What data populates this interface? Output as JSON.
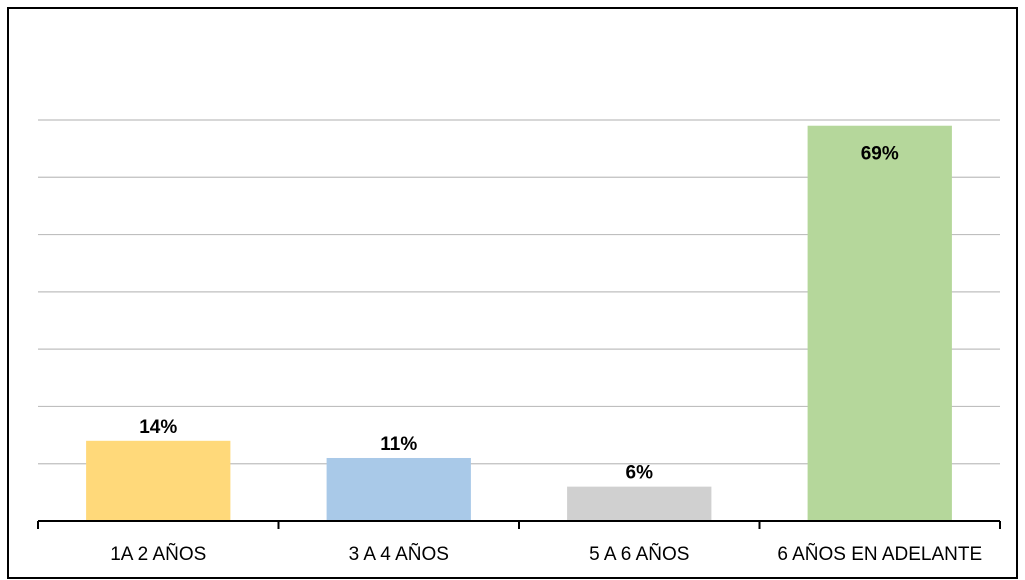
{
  "chart_data": {
    "type": "bar",
    "categories": [
      "1A 2 AÑOS",
      "3 A 4 AÑOS",
      "5 A 6 AÑOS",
      "6 AÑOS EN ADELANTE"
    ],
    "values": [
      14,
      11,
      6,
      69
    ],
    "data_labels": [
      "14%",
      "11%",
      "6%",
      "69%"
    ],
    "bar_colors": [
      "#FFD97A",
      "#A9C9E8",
      "#D0D0D0",
      "#B5D79B"
    ],
    "ylim": [
      0,
      70
    ],
    "y_step": 10,
    "grid": true,
    "legend": "none",
    "title": "",
    "xlabel": "",
    "ylabel": ""
  }
}
